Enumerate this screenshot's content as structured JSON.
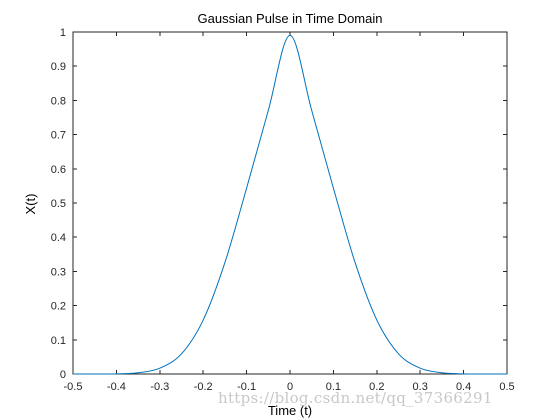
{
  "colors": {
    "line": "#0072BD",
    "axes": "#262626",
    "background": "#ffffff"
  },
  "chart_data": {
    "type": "line",
    "title": "Gaussian Pulse in Time Domain",
    "xlabel": "Time (t)",
    "ylabel": "X(t)",
    "xlim": [
      -0.5,
      0.5
    ],
    "ylim": [
      0,
      1
    ],
    "x_ticks": [
      "-0.5",
      "-0.4",
      "-0.3",
      "-0.2",
      "-0.1",
      "0",
      "0.1",
      "0.2",
      "0.3",
      "0.4",
      "0.5"
    ],
    "y_ticks": [
      "0",
      "0.1",
      "0.2",
      "0.3",
      "0.4",
      "0.5",
      "0.6",
      "0.7",
      "0.8",
      "0.9",
      "1"
    ],
    "grid": false,
    "legend": "none",
    "series": [
      {
        "x": [
          -0.5,
          -0.45,
          -0.4,
          -0.35,
          -0.3,
          -0.25,
          -0.2,
          -0.15,
          -0.1,
          -0.05,
          0,
          0.05,
          0.1,
          0.15,
          0.2,
          0.25,
          0.3,
          0.35,
          0.4,
          0.45,
          0.5
        ],
        "values": [
          0.0,
          0.0,
          0.0005,
          0.0035,
          0.0169,
          0.0591,
          0.1578,
          0.3258,
          0.5436,
          0.7707,
          0.99,
          0.7707,
          0.5436,
          0.3258,
          0.1578,
          0.0591,
          0.0169,
          0.0035,
          0.0005,
          0.0,
          0.0
        ]
      }
    ]
  },
  "watermark": {
    "text": "https://blog.csdn.net/qq_37366291"
  }
}
